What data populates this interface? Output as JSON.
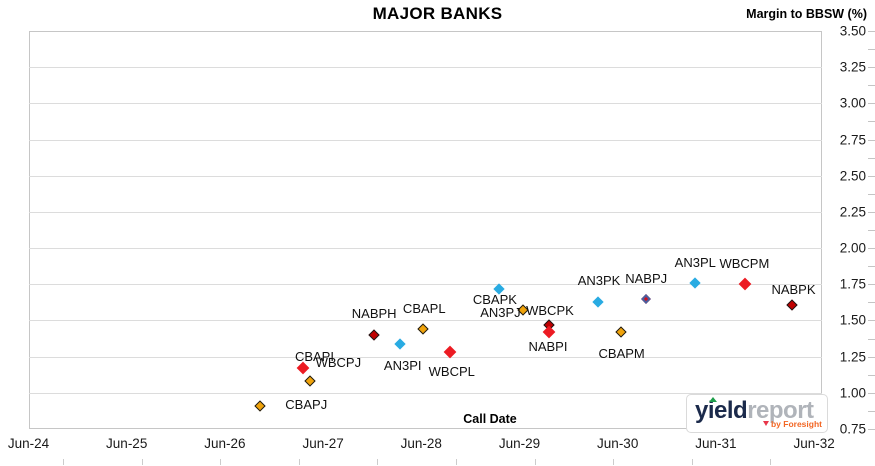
{
  "title": "MAJOR BANKS",
  "y_axis_title": "Margin to BBSW (%)",
  "x_axis_label": "Call Date",
  "logo": {
    "part1": "yield",
    "part2": "report",
    "tagline": "by Foresight",
    "part1_color": "#1b2a4b",
    "part2_color": "#b0b4ba",
    "tagline_color": "#f26624"
  },
  "chart_data": {
    "type": "scatter",
    "title": "MAJOR BANKS",
    "xlabel": "Call Date",
    "ylabel": "Margin to BBSW (%)",
    "ylim": [
      0.75,
      3.5
    ],
    "y_tick_step": 0.25,
    "grid": "horizontal",
    "legend": "none",
    "x_axis": {
      "tick_labels": [
        "Jun-24",
        "Jun-25",
        "Jun-26",
        "Jun-27",
        "Jun-28",
        "Jun-29",
        "Jun-30",
        "Jun-31",
        "Jun-32"
      ]
    },
    "y_axis": {
      "tick_labels": [
        "3.50",
        "3.25",
        "3.00",
        "2.75",
        "2.50",
        "2.25",
        "2.00",
        "1.75",
        "1.50",
        "1.25",
        "1.00",
        "0.75"
      ],
      "side": "right"
    },
    "colors": {
      "gold": "#F0A30A",
      "red": "#EC1B23",
      "dark_red": "#C00000",
      "blue": "#29ABE2",
      "red_blue": "#D01020"
    },
    "points": [
      {
        "label": "CBAPJ",
        "call_date": "Oct-26",
        "x_year": 2.36,
        "margin": 0.91,
        "color": "gold",
        "label_offset": [
          46,
          -1
        ]
      },
      {
        "label": "CBAPI",
        "call_date": "Mar-27",
        "x_year": 2.8,
        "margin": 1.17,
        "color": "red",
        "label_offset": [
          11,
          -11
        ]
      },
      {
        "label": "WBCPJ",
        "call_date": "Apr-27",
        "x_year": 2.87,
        "margin": 1.08,
        "color": "gold",
        "label_offset": [
          28,
          -18
        ]
      },
      {
        "label": "NABPH",
        "call_date": "Dec-27",
        "x_year": 3.52,
        "margin": 1.4,
        "color": "dark_red",
        "label_offset": [
          0,
          -21
        ]
      },
      {
        "label": "AN3PI",
        "call_date": "Mar-28",
        "x_year": 3.78,
        "margin": 1.34,
        "color": "blue",
        "label_offset": [
          3,
          22
        ]
      },
      {
        "label": "CBAPL",
        "call_date": "Jun-28",
        "x_year": 4.02,
        "margin": 1.44,
        "color": "gold",
        "label_offset": [
          1,
          -20
        ]
      },
      {
        "label": "WBCPL",
        "call_date": "Sep-28",
        "x_year": 4.29,
        "margin": 1.28,
        "color": "red",
        "label_offset": [
          2,
          20
        ]
      },
      {
        "label": "CBAPK",
        "call_date": "Mar-29",
        "x_year": 4.79,
        "margin": 1.72,
        "color": "blue",
        "label_offset": [
          -4,
          11
        ]
      },
      {
        "label": "AN3PJ",
        "call_date": "Jun-29",
        "x_year": 5.04,
        "margin": 1.57,
        "color": "gold",
        "label_offset": [
          -23,
          3
        ]
      },
      {
        "label": "WBCPK",
        "call_date": "Sep-29",
        "x_year": 5.3,
        "margin": 1.47,
        "color": "dark_red",
        "label_offset": [
          1,
          -14
        ]
      },
      {
        "label": "NABPI",
        "call_date": "Sep-29",
        "x_year": 5.3,
        "margin": 1.42,
        "color": "red",
        "label_offset": [
          -1,
          15
        ]
      },
      {
        "label": "AN3PK",
        "call_date": "Mar-30",
        "x_year": 5.8,
        "margin": 1.63,
        "color": "blue",
        "label_offset": [
          1,
          -21
        ]
      },
      {
        "label": "CBAPM",
        "call_date": "Jun-30",
        "x_year": 6.03,
        "margin": 1.42,
        "color": "gold",
        "label_offset": [
          1,
          22
        ]
      },
      {
        "label": "NABPJ",
        "call_date": "Sep-30",
        "x_year": 6.29,
        "margin": 1.65,
        "color": "red_blue",
        "label_offset": [
          0,
          -20
        ]
      },
      {
        "label": "AN3PL",
        "call_date": "Mar-31",
        "x_year": 6.79,
        "margin": 1.76,
        "color": "blue",
        "label_offset": [
          0,
          -20
        ]
      },
      {
        "label": "WBCPM",
        "call_date": "Sep-31",
        "x_year": 7.3,
        "margin": 1.75,
        "color": "red",
        "label_offset": [
          -1,
          -20
        ]
      },
      {
        "label": "NABPK",
        "call_date": "Mar-32",
        "x_year": 7.78,
        "margin": 1.61,
        "color": "dark_red",
        "label_offset": [
          1,
          -15
        ]
      }
    ]
  }
}
